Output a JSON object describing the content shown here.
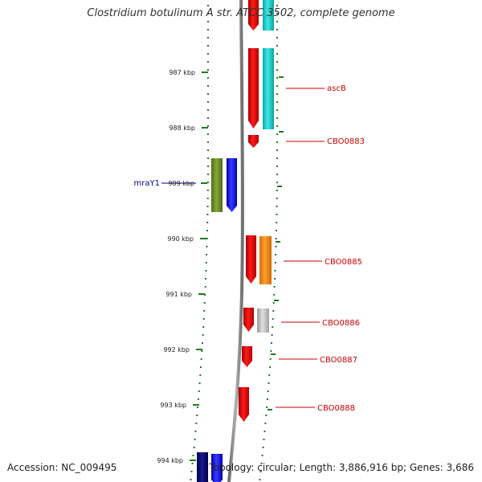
{
  "title": "Clostridium botulinum A str. ATCC 3502, complete genome",
  "footer": {
    "accession_label": "Accession:",
    "accession": "NC_009495",
    "topology_label": "Topology:",
    "topology": "circular",
    "length_label": "Length:",
    "length": "3,886,916 bp",
    "genes_label": "Genes:",
    "genes": "3,686"
  },
  "ticks": [
    {
      "label": "987 kbp"
    },
    {
      "label": "988 kbp"
    },
    {
      "label": "989 kbp"
    },
    {
      "label": "990 kbp"
    },
    {
      "label": "991 kbp"
    },
    {
      "label": "992 kbp"
    },
    {
      "label": "993 kbp"
    },
    {
      "label": "994 kbp"
    }
  ],
  "gene_labels": [
    {
      "name": "ascB",
      "color": "#cc0000"
    },
    {
      "name": "CBO0883",
      "color": "#cc0000"
    },
    {
      "name": "mraY1",
      "color": "#000080"
    },
    {
      "name": "CBO0885",
      "color": "#cc0000"
    },
    {
      "name": "CBO0886",
      "color": "#cc0000"
    },
    {
      "name": "CBO0887",
      "color": "#cc0000"
    },
    {
      "name": "CBO0888",
      "color": "#cc0000"
    }
  ],
  "colors": {
    "backbone": "#8a8a8a",
    "dots": "#1f7a1f",
    "forward_gene": "#ff0000",
    "cyan_feature": "#1ccfcf",
    "orange_feature": "#ff8c00",
    "grey_feature": "#bdbdbd",
    "olive_feature": "#6b8e23",
    "blue_feature": "#0000ff",
    "navy_feature": "#000080"
  }
}
